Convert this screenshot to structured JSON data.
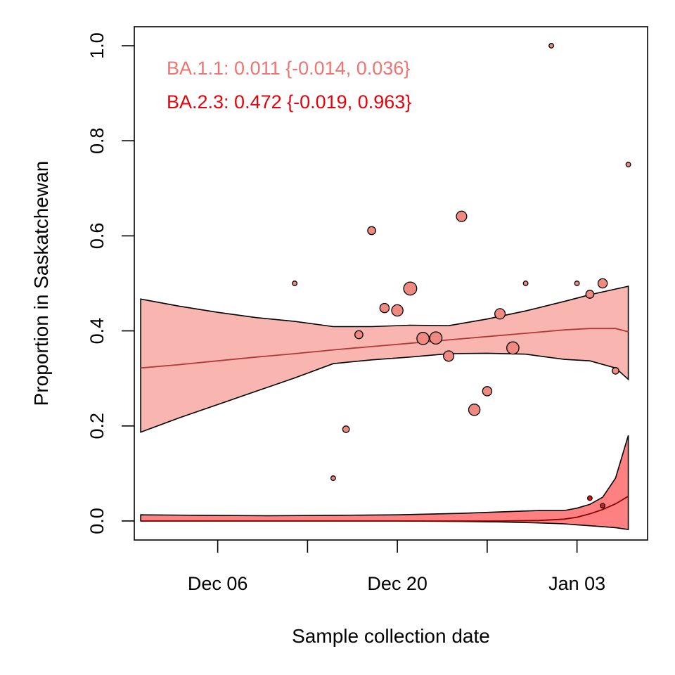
{
  "chart_data": {
    "type": "scatter",
    "xlabel": "Sample collection date",
    "ylabel": "Proportion in Saskatchewan",
    "x_ticks": [
      {
        "date": "2021-12-06",
        "label": "Dec 06"
      },
      {
        "date": "2021-12-13",
        "label": ""
      },
      {
        "date": "2021-12-20",
        "label": "Dec 20"
      },
      {
        "date": "2021-12-27",
        "label": ""
      },
      {
        "date": "2022-01-03",
        "label": "Jan 03"
      }
    ],
    "xlim": [
      "2021-11-29T12:00",
      "2022-01-08T12:00"
    ],
    "y_ticks": [
      {
        "value": 0.0,
        "label": "0.0"
      },
      {
        "value": 0.2,
        "label": "0.2"
      },
      {
        "value": 0.4,
        "label": "0.4"
      },
      {
        "value": 0.6,
        "label": "0.6"
      },
      {
        "value": 0.8,
        "label": "0.8"
      },
      {
        "value": 1.0,
        "label": "1.0"
      }
    ],
    "ylim": [
      -0.04,
      1.04
    ],
    "grid": false,
    "annotations": [
      {
        "text": "BA.1.1: 0.011 {-0.014, 0.036}",
        "color": "#f07470"
      },
      {
        "text": "BA.2.3: 0.472 {-0.019, 0.963}",
        "color": "#e8000b"
      }
    ],
    "series": [
      {
        "name": "BA.1.1",
        "fill_color": "#f9b5b0",
        "point_color": "#f08a80",
        "line_color": "#b03a3a",
        "band": {
          "x": [
            "2021-11-30",
            "2021-12-03",
            "2021-12-06",
            "2021-12-09",
            "2021-12-12",
            "2021-12-15",
            "2021-12-18",
            "2021-12-21",
            "2021-12-24",
            "2021-12-27",
            "2021-12-30",
            "2022-01-02",
            "2022-01-04",
            "2022-01-06",
            "2022-01-07"
          ],
          "fit": [
            0.322,
            0.329,
            0.337,
            0.345,
            0.352,
            0.36,
            0.367,
            0.374,
            0.381,
            0.388,
            0.395,
            0.402,
            0.405,
            0.405,
            0.398
          ],
          "lower": [
            0.187,
            0.217,
            0.245,
            0.273,
            0.301,
            0.331,
            0.339,
            0.345,
            0.352,
            0.353,
            0.351,
            0.34,
            0.337,
            0.322,
            0.298
          ],
          "upper": [
            0.467,
            0.452,
            0.439,
            0.428,
            0.42,
            0.409,
            0.409,
            0.412,
            0.411,
            0.425,
            0.442,
            0.462,
            0.476,
            0.488,
            0.494
          ]
        },
        "points": [
          {
            "x": "2021-12-12",
            "y": 0.5,
            "size": 1
          },
          {
            "x": "2021-12-15",
            "y": 0.09,
            "size": 1
          },
          {
            "x": "2021-12-16",
            "y": 0.193,
            "size": 2
          },
          {
            "x": "2021-12-17",
            "y": 0.392,
            "size": 3
          },
          {
            "x": "2021-12-18",
            "y": 0.611,
            "size": 3
          },
          {
            "x": "2021-12-19",
            "y": 0.448,
            "size": 4
          },
          {
            "x": "2021-12-20",
            "y": 0.443,
            "size": 6
          },
          {
            "x": "2021-12-21",
            "y": 0.489,
            "size": 8
          },
          {
            "x": "2021-12-22",
            "y": 0.384,
            "size": 7
          },
          {
            "x": "2021-12-23",
            "y": 0.385,
            "size": 7
          },
          {
            "x": "2021-12-24",
            "y": 0.347,
            "size": 5
          },
          {
            "x": "2021-12-25",
            "y": 0.641,
            "size": 5
          },
          {
            "x": "2021-12-26",
            "y": 0.234,
            "size": 6
          },
          {
            "x": "2021-12-27",
            "y": 0.273,
            "size": 4
          },
          {
            "x": "2021-12-28",
            "y": 0.436,
            "size": 5
          },
          {
            "x": "2021-12-29",
            "y": 0.364,
            "size": 7
          },
          {
            "x": "2021-12-30",
            "y": 0.5,
            "size": 1
          },
          {
            "x": "2022-01-01",
            "y": 1.0,
            "size": 1
          },
          {
            "x": "2022-01-03",
            "y": 0.5,
            "size": 1
          },
          {
            "x": "2022-01-04",
            "y": 0.477,
            "size": 3
          },
          {
            "x": "2022-01-05",
            "y": 0.5,
            "size": 4
          },
          {
            "x": "2022-01-06",
            "y": 0.316,
            "size": 2
          },
          {
            "x": "2022-01-07",
            "y": 0.75,
            "size": 1
          }
        ]
      },
      {
        "name": "BA.2.3",
        "fill_color": "#ff8080",
        "point_color": "#e81010",
        "line_color": "#8b0000",
        "band": {
          "x": [
            "2021-11-30",
            "2021-12-05",
            "2021-12-10",
            "2021-12-15",
            "2021-12-20",
            "2021-12-25",
            "2021-12-28",
            "2021-12-31",
            "2022-01-02",
            "2022-01-03",
            "2022-01-04",
            "2022-01-05",
            "2022-01-06",
            "2022-01-07"
          ],
          "fit": [
            0.0,
            0.0,
            0.0,
            0.0,
            0.0,
            0.0,
            0.0,
            0.001,
            0.004,
            0.008,
            0.015,
            0.024,
            0.036,
            0.052
          ],
          "lower": [
            0.0,
            0.0,
            0.0,
            0.0,
            0.0,
            -0.001,
            -0.002,
            -0.004,
            -0.006,
            -0.008,
            -0.01,
            -0.012,
            -0.014,
            -0.018
          ],
          "upper": [
            0.013,
            0.012,
            0.011,
            0.012,
            0.013,
            0.016,
            0.019,
            0.022,
            0.022,
            0.027,
            0.035,
            0.05,
            0.09,
            0.18
          ]
        },
        "points": [
          {
            "x": "2022-01-04",
            "y": 0.048,
            "size": 1
          },
          {
            "x": "2022-01-05",
            "y": 0.032,
            "size": 1
          }
        ]
      }
    ]
  }
}
